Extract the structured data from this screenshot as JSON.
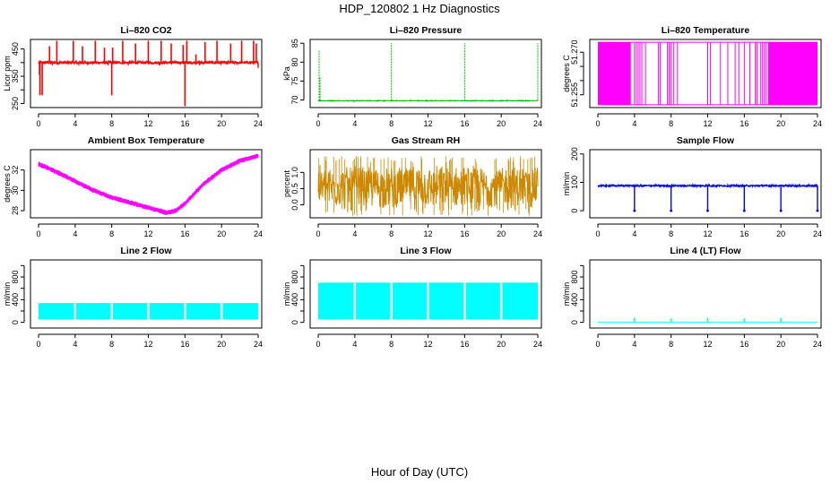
{
  "figure": {
    "title": "HDP_120802  1 Hz Diagnostics",
    "xlabel": "Hour of Day (UTC)"
  },
  "chart_data": [
    {
      "type": "line",
      "title": "Li–820 CO2",
      "ylabel": "Licor ppm",
      "color": "#ff0000",
      "xlim": [
        0,
        24
      ],
      "xticks": [
        0,
        4,
        8,
        12,
        16,
        20,
        24
      ],
      "ylim": [
        235,
        485
      ],
      "yticks": [
        250,
        300,
        350,
        400,
        450
      ],
      "ytick_labels": [
        "250",
        "",
        "350",
        "",
        "450"
      ],
      "baseline": 400,
      "noise": 5,
      "spikes": [
        [
          0.1,
          355
        ],
        [
          0.15,
          280
        ],
        [
          0.4,
          280
        ],
        [
          1.2,
          460
        ],
        [
          2.0,
          480
        ],
        [
          3.8,
          480
        ],
        [
          4.8,
          460
        ],
        [
          6.2,
          480
        ],
        [
          7.2,
          455
        ],
        [
          8.0,
          280
        ],
        [
          8.1,
          455
        ],
        [
          9.2,
          480
        ],
        [
          10.6,
          470
        ],
        [
          12.0,
          480
        ],
        [
          13.4,
          480
        ],
        [
          14.5,
          470
        ],
        [
          15.8,
          465
        ],
        [
          16.0,
          240
        ],
        [
          16.2,
          480
        ],
        [
          17.2,
          430
        ],
        [
          18.2,
          475
        ],
        [
          19.5,
          480
        ],
        [
          21.0,
          470
        ],
        [
          22.2,
          480
        ],
        [
          23.5,
          480
        ],
        [
          23.8,
          470
        ]
      ],
      "dips": [
        [
          1.5,
          390
        ],
        [
          4.4,
          390
        ],
        [
          7.6,
          390
        ],
        [
          9.8,
          390
        ],
        [
          13.2,
          390
        ],
        [
          17.6,
          390
        ],
        [
          20.6,
          392
        ],
        [
          24.0,
          380
        ]
      ]
    },
    {
      "type": "line",
      "title": "Li–820 Pressure",
      "ylabel": "kPa",
      "color": "#00bb00",
      "xlim": [
        0,
        24
      ],
      "xticks": [
        0,
        4,
        8,
        12,
        16,
        20,
        24
      ],
      "ylim": [
        68,
        86
      ],
      "yticks": [
        70,
        75,
        80,
        85
      ],
      "ytick_labels": [
        "70",
        "75",
        "80",
        "85"
      ],
      "baseline": 69.8,
      "noise": 0.1,
      "spikes": [
        [
          0.1,
          83
        ],
        [
          0.2,
          76
        ],
        [
          3.9,
          69.2
        ],
        [
          8.0,
          85
        ],
        [
          16.0,
          85
        ],
        [
          24.0,
          85
        ]
      ],
      "dips": []
    },
    {
      "type": "line",
      "title": "Li–820 Temperature",
      "ylabel": "degrees C",
      "color": "#ff00ff",
      "xlim": [
        0,
        24
      ],
      "xticks": [
        0,
        4,
        8,
        12,
        16,
        20,
        24
      ],
      "ylim": [
        51.2505,
        51.2745
      ],
      "yticks": [
        51.255,
        51.26,
        51.265,
        51.27
      ],
      "ytick_labels": [
        "51.255",
        "",
        "",
        "51.270"
      ],
      "low": 51.2515,
      "high": 51.2735,
      "dense_ranges": [
        [
          0,
          3.6
        ],
        [
          18.6,
          24
        ]
      ],
      "flip_hours": [
        4.0,
        4.2,
        4.4,
        4.6,
        4.8,
        5.2,
        6.6,
        6.8,
        7.6,
        7.8,
        8.0,
        8.3,
        8.7,
        12.0,
        12.3,
        13.4,
        14.2,
        15.0,
        15.4,
        16.0,
        16.6,
        17.2,
        17.4,
        17.8,
        18.0,
        18.2,
        18.4
      ]
    },
    {
      "type": "line",
      "title": "Ambient Box Temperature",
      "ylabel": "degrees C",
      "color": "#ff00ff",
      "xlim": [
        0,
        24
      ],
      "xticks": [
        0,
        4,
        8,
        12,
        16,
        20,
        24
      ],
      "ylim": [
        27.3,
        34.0
      ],
      "yticks": [
        28,
        30,
        32
      ],
      "ytick_labels": [
        "28",
        "30",
        "32"
      ],
      "x": [
        0,
        2,
        4,
        6,
        8,
        10,
        12,
        14,
        15,
        16,
        18,
        20,
        22,
        24
      ],
      "y": [
        32.6,
        31.8,
        30.9,
        30.0,
        29.3,
        28.8,
        28.3,
        27.8,
        28.0,
        28.7,
        30.6,
        32.0,
        32.9,
        33.4
      ],
      "band": 0.25
    },
    {
      "type": "line",
      "title": "Gas Stream RH",
      "ylabel": "percent",
      "color": "#cc8800",
      "xlim": [
        0,
        24
      ],
      "xticks": [
        0,
        4,
        8,
        12,
        16,
        20,
        24
      ],
      "ylim": [
        -0.4,
        1.7
      ],
      "yticks": [
        0,
        0.5,
        1.0
      ],
      "ytick_labels": [
        "0.0",
        "0.5",
        "1.0"
      ],
      "center": 0.55,
      "low_envelope": -0.1,
      "high_envelope": 1.3
    },
    {
      "type": "line",
      "title": "Sample Flow",
      "ylabel": "ml/min",
      "color": "#0000ff",
      "xlim": [
        0,
        24
      ],
      "xticks": [
        0,
        4,
        8,
        12,
        16,
        20,
        24
      ],
      "ylim": [
        -25,
        215
      ],
      "yticks": [
        0,
        100,
        200
      ],
      "ytick_labels": [
        "0",
        "100",
        "200"
      ],
      "baseline": 88,
      "noise": 3,
      "dips": [
        [
          4,
          0
        ],
        [
          8,
          0
        ],
        [
          12,
          0
        ],
        [
          16,
          0
        ],
        [
          20,
          0
        ],
        [
          24,
          0
        ]
      ]
    },
    {
      "type": "area",
      "title": "Line 2 Flow",
      "ylabel": "ml/min",
      "color": "#00ffff",
      "xlim": [
        0,
        24
      ],
      "xticks": [
        0,
        4,
        8,
        12,
        16,
        20,
        24
      ],
      "ylim": [
        -100,
        1100
      ],
      "yticks": [
        0,
        200,
        400,
        600,
        800,
        1000
      ],
      "ytick_labels": [
        "0",
        "",
        "400",
        "",
        "800",
        ""
      ],
      "low": 50,
      "high": 340,
      "gaps": [
        4,
        8,
        12,
        16,
        20
      ]
    },
    {
      "type": "area",
      "title": "Line 3 Flow",
      "ylabel": "ml/min",
      "color": "#00ffff",
      "xlim": [
        0,
        24
      ],
      "xticks": [
        0,
        4,
        8,
        12,
        16,
        20,
        24
      ],
      "ylim": [
        -100,
        1100
      ],
      "yticks": [
        0,
        200,
        400,
        600,
        800,
        1000
      ],
      "ytick_labels": [
        "0",
        "",
        "400",
        "",
        "800",
        ""
      ],
      "low": 50,
      "high": 700,
      "gaps": [
        4,
        8,
        12,
        16,
        20
      ]
    },
    {
      "type": "line",
      "title": "Line 4 (LT) Flow",
      "ylabel": "ml/min",
      "color": "#00ffff",
      "xlim": [
        0,
        24
      ],
      "xticks": [
        0,
        4,
        8,
        12,
        16,
        20,
        24
      ],
      "ylim": [
        -100,
        1100
      ],
      "yticks": [
        0,
        200,
        400,
        600,
        800,
        1000
      ],
      "ytick_labels": [
        "0",
        "",
        "400",
        "",
        "800",
        ""
      ],
      "baseline": 5,
      "spikes": [
        [
          4,
          80
        ],
        [
          8,
          70
        ],
        [
          12,
          80
        ],
        [
          16,
          70
        ],
        [
          20,
          80
        ]
      ]
    }
  ]
}
